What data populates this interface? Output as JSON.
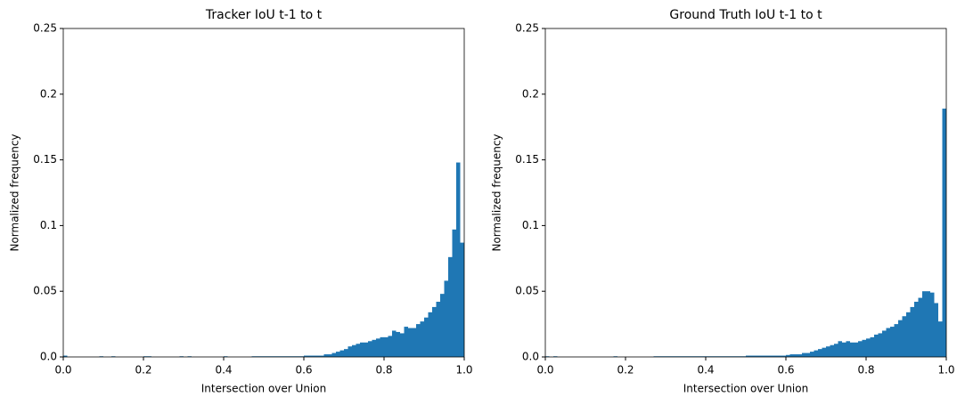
{
  "chart_data": [
    {
      "type": "histogram",
      "title": "Tracker IoU t-1 to t",
      "xlabel": "Intersection over Union",
      "ylabel": "Normalized frequency",
      "color": "#1f77b4",
      "bins": [
        0,
        0.01,
        0.02,
        0.03,
        0.04,
        0.05,
        0.06,
        0.07,
        0.08,
        0.09,
        0.1,
        0.11,
        0.12,
        0.13,
        0.14,
        0.15,
        0.16,
        0.17,
        0.18,
        0.19,
        0.2,
        0.21,
        0.22,
        0.23,
        0.24,
        0.25,
        0.26,
        0.27,
        0.28,
        0.29,
        0.3,
        0.31,
        0.32,
        0.33,
        0.34,
        0.35,
        0.36,
        0.37,
        0.38,
        0.39,
        0.4,
        0.41,
        0.42,
        0.43,
        0.44,
        0.45,
        0.46,
        0.47,
        0.48,
        0.49,
        0.5,
        0.51,
        0.52,
        0.53,
        0.54,
        0.55,
        0.56,
        0.57,
        0.58,
        0.59,
        0.6,
        0.61,
        0.62,
        0.63,
        0.64,
        0.65,
        0.66,
        0.67,
        0.68,
        0.69,
        0.7,
        0.71,
        0.72,
        0.73,
        0.74,
        0.75,
        0.76,
        0.77,
        0.78,
        0.79,
        0.8,
        0.81,
        0.82,
        0.83,
        0.84,
        0.85,
        0.86,
        0.87,
        0.88,
        0.89,
        0.9,
        0.91,
        0.92,
        0.93,
        0.94,
        0.95,
        0.96,
        0.97,
        0.98,
        0.99,
        1
      ],
      "values": [
        0.001,
        0,
        0,
        0,
        0,
        0,
        0,
        0,
        0,
        0.0005,
        0,
        0,
        0.0005,
        0,
        0,
        0,
        0,
        0,
        0,
        0,
        0.0005,
        0.0005,
        0,
        0,
        0,
        0,
        0,
        0,
        0,
        0.0005,
        0,
        0.0005,
        0,
        0,
        0,
        0,
        0,
        0,
        0,
        0,
        0.0005,
        0,
        0,
        0,
        0,
        0,
        0,
        0.0005,
        0.0005,
        0.0005,
        0.0005,
        0.0005,
        0.0005,
        0.0005,
        0.0005,
        0.0005,
        0.0005,
        0.0005,
        0.0005,
        0.0005,
        0.001,
        0.001,
        0.001,
        0.001,
        0.001,
        0.002,
        0.002,
        0.003,
        0.004,
        0.005,
        0.006,
        0.008,
        0.009,
        0.01,
        0.011,
        0.011,
        0.012,
        0.013,
        0.014,
        0.015,
        0.015,
        0.016,
        0.02,
        0.019,
        0.018,
        0.023,
        0.022,
        0.022,
        0.025,
        0.027,
        0.03,
        0.034,
        0.038,
        0.042,
        0.048,
        0.058,
        0.076,
        0.097,
        0.148,
        0.087
      ],
      "xlim": [
        0,
        1
      ],
      "xticks": [
        {
          "value": 0,
          "label": "0.0"
        },
        0.2,
        0.4,
        0.6,
        0.8,
        {
          "value": 1,
          "label": "1.0"
        }
      ],
      "ylim": [
        0,
        0.25
      ],
      "yticks": [
        {
          "value": 0,
          "label": "0.0"
        },
        0.05,
        0.1,
        0.15,
        0.2,
        0.25
      ]
    },
    {
      "type": "histogram",
      "title": "Ground Truth IoU t-1 to t",
      "xlabel": "Intersection over Union",
      "ylabel": "Normalized frequency",
      "color": "#1f77b4",
      "bins": [
        0,
        0.01,
        0.02,
        0.03,
        0.04,
        0.05,
        0.06,
        0.07,
        0.08,
        0.09,
        0.1,
        0.11,
        0.12,
        0.13,
        0.14,
        0.15,
        0.16,
        0.17,
        0.18,
        0.19,
        0.2,
        0.21,
        0.22,
        0.23,
        0.24,
        0.25,
        0.26,
        0.27,
        0.28,
        0.29,
        0.3,
        0.31,
        0.32,
        0.33,
        0.34,
        0.35,
        0.36,
        0.37,
        0.38,
        0.39,
        0.4,
        0.41,
        0.42,
        0.43,
        0.44,
        0.45,
        0.46,
        0.47,
        0.48,
        0.49,
        0.5,
        0.51,
        0.52,
        0.53,
        0.54,
        0.55,
        0.56,
        0.57,
        0.58,
        0.59,
        0.6,
        0.61,
        0.62,
        0.63,
        0.64,
        0.65,
        0.66,
        0.67,
        0.68,
        0.69,
        0.7,
        0.71,
        0.72,
        0.73,
        0.74,
        0.75,
        0.76,
        0.77,
        0.78,
        0.79,
        0.8,
        0.81,
        0.82,
        0.83,
        0.84,
        0.85,
        0.86,
        0.87,
        0.88,
        0.89,
        0.9,
        0.91,
        0.92,
        0.93,
        0.94,
        0.95,
        0.96,
        0.97,
        0.98,
        0.99,
        1
      ],
      "values": [
        0.0005,
        0,
        0.0005,
        0,
        0,
        0,
        0,
        0,
        0,
        0,
        0,
        0,
        0,
        0,
        0,
        0,
        0,
        0.0005,
        0,
        0,
        0,
        0,
        0,
        0,
        0,
        0,
        0,
        0.0005,
        0.0005,
        0.0005,
        0.0005,
        0.0005,
        0.0005,
        0.0005,
        0.0005,
        0.0005,
        0.0005,
        0.0005,
        0.0005,
        0.0005,
        0.0005,
        0.0005,
        0.0005,
        0.0005,
        0.0005,
        0.0005,
        0.0005,
        0.0005,
        0.0005,
        0.0005,
        0.001,
        0.001,
        0.001,
        0.001,
        0.001,
        0.001,
        0.001,
        0.001,
        0.001,
        0.001,
        0.0015,
        0.002,
        0.002,
        0.002,
        0.003,
        0.003,
        0.004,
        0.005,
        0.006,
        0.007,
        0.008,
        0.009,
        0.01,
        0.012,
        0.011,
        0.012,
        0.011,
        0.011,
        0.012,
        0.013,
        0.014,
        0.015,
        0.017,
        0.018,
        0.02,
        0.022,
        0.023,
        0.025,
        0.028,
        0.031,
        0.034,
        0.038,
        0.042,
        0.045,
        0.05,
        0.05,
        0.049,
        0.041,
        0.027,
        0.189
      ],
      "xlim": [
        0,
        1
      ],
      "xticks": [
        {
          "value": 0,
          "label": "0.0"
        },
        0.2,
        0.4,
        0.6,
        0.8,
        {
          "value": 1,
          "label": "1.0"
        }
      ],
      "ylim": [
        0,
        0.25
      ],
      "yticks": [
        {
          "value": 0,
          "label": "0.0"
        },
        0.05,
        0.1,
        0.15,
        0.2,
        0.25
      ]
    }
  ]
}
